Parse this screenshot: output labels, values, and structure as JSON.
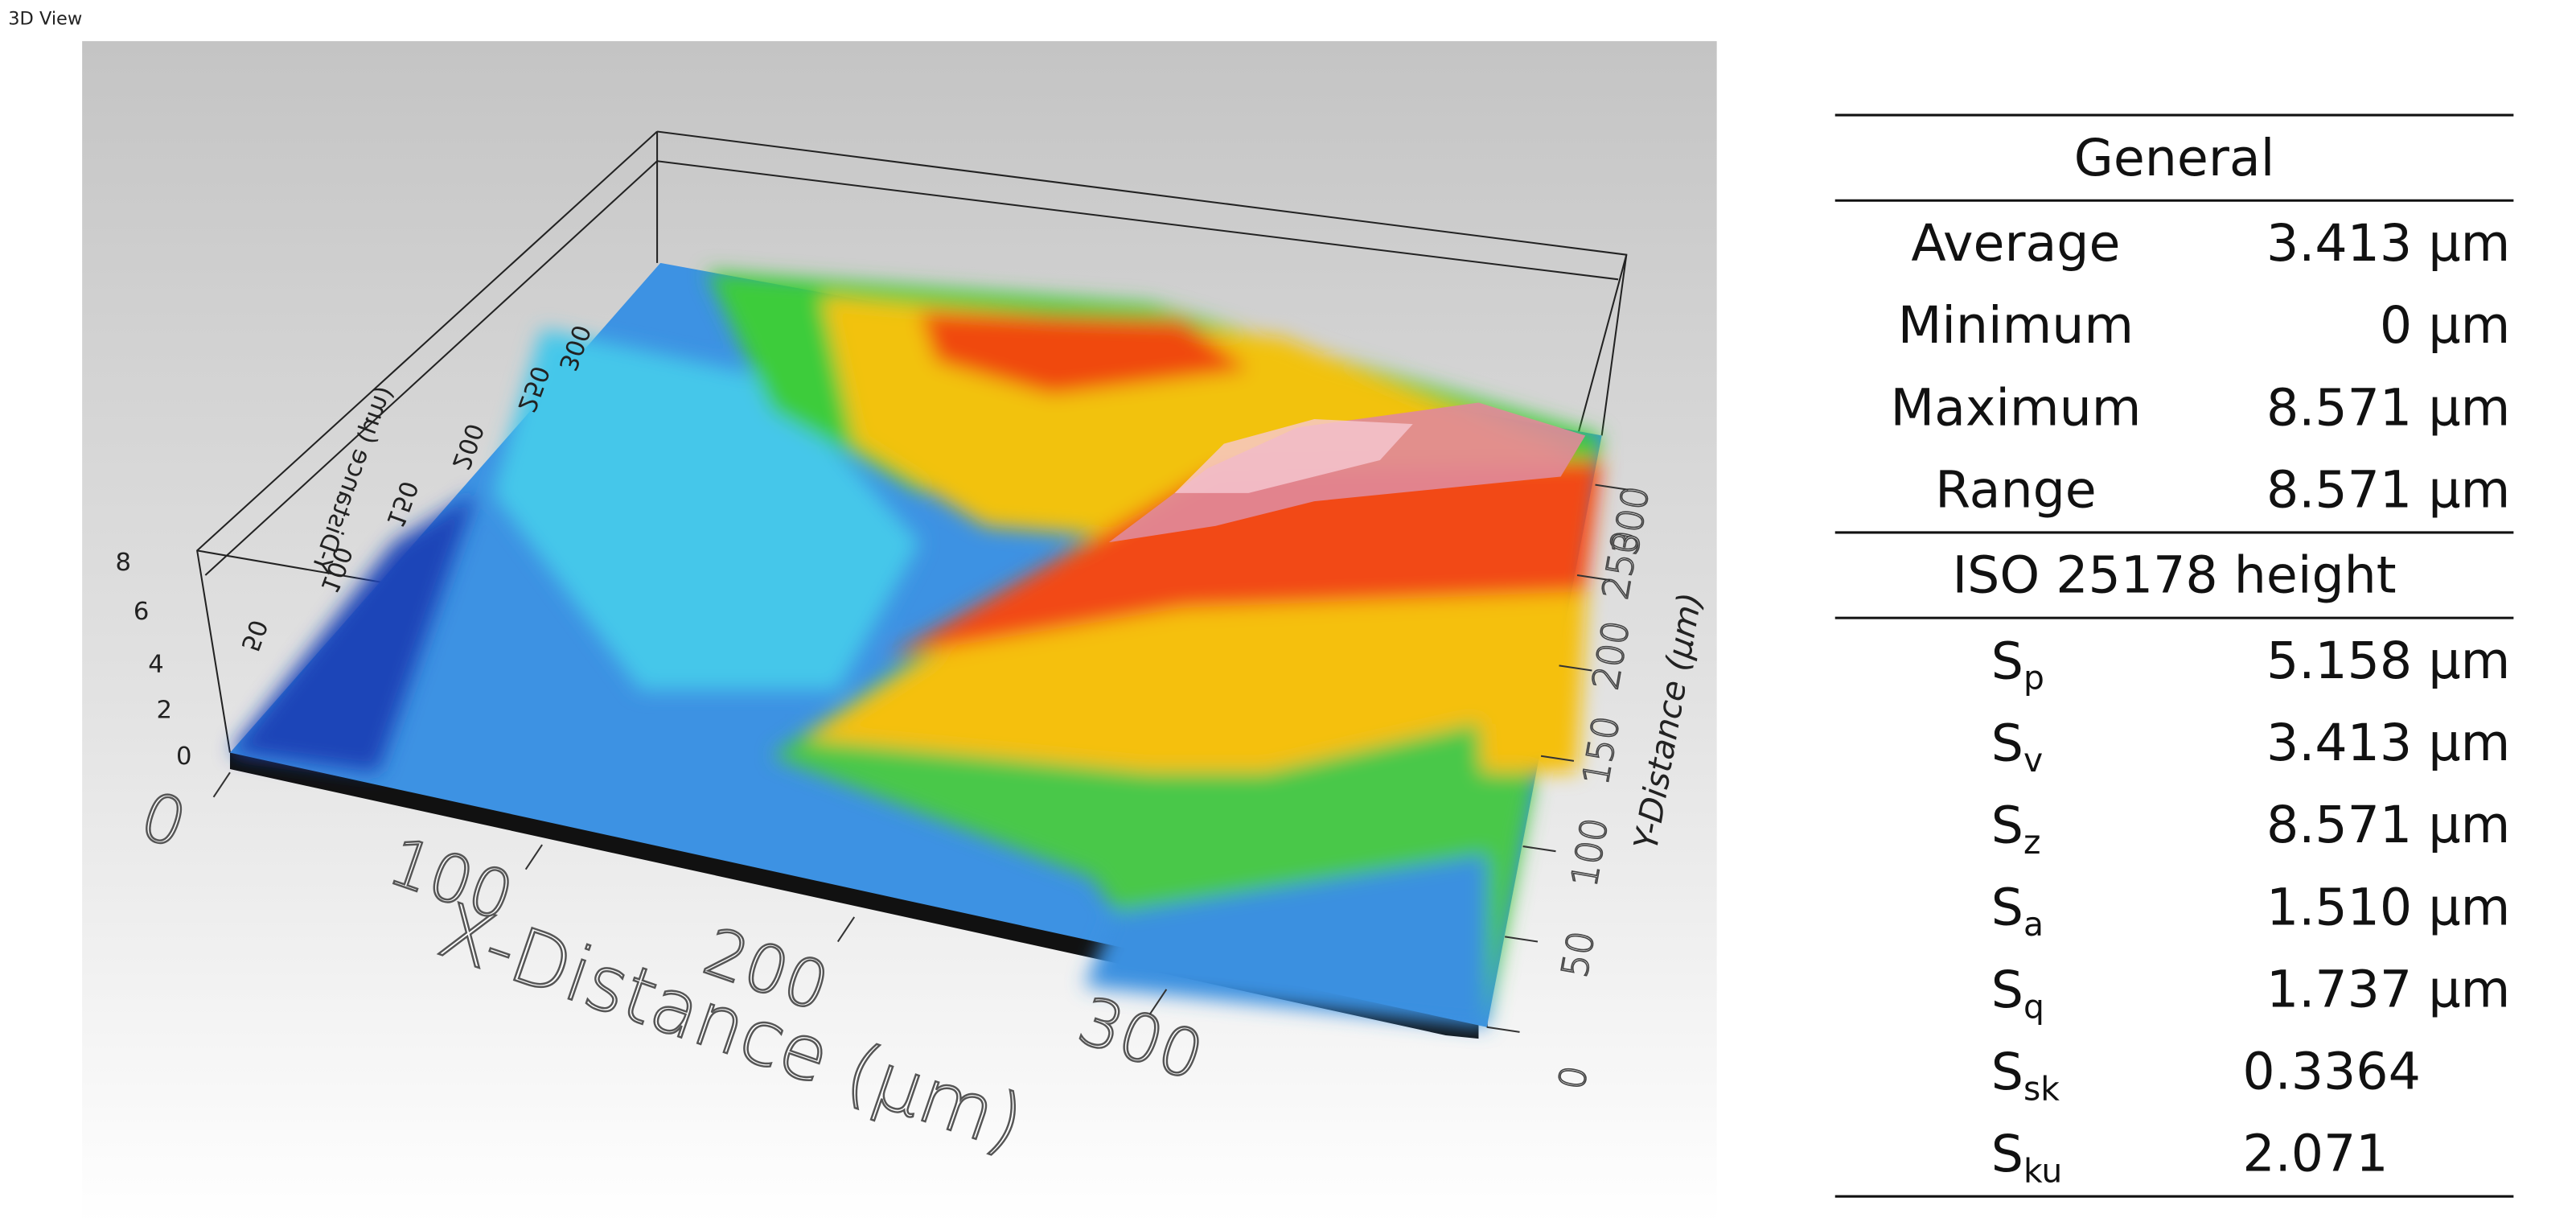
{
  "header": {
    "title": "3D View"
  },
  "view3d": {
    "x_axis_title": "X-Distance (μm)",
    "y_axis_title": "Y-Distance (μm)",
    "back_axis_title": "Y-Distance (μm)",
    "x_ticks": [
      0,
      100,
      200,
      300
    ],
    "y_ticks": [
      0,
      50,
      100,
      150,
      200,
      250,
      300
    ],
    "z_ticks": [
      0,
      2,
      4,
      6,
      8
    ],
    "back_ticks": [
      50,
      100,
      150,
      200,
      250,
      300
    ]
  },
  "table": {
    "sections": [
      {
        "title": "General",
        "rows": [
          {
            "label": "Average",
            "value": "3.413 μm"
          },
          {
            "label": "Minimum",
            "value": "0 μm"
          },
          {
            "label": "Maximum",
            "value": "8.571 μm"
          },
          {
            "label": "Range",
            "value": "8.571 μm"
          }
        ]
      },
      {
        "title": "ISO 25178 height",
        "rows": [
          {
            "symbol": "S",
            "subscript": "p",
            "value": "5.158 μm"
          },
          {
            "symbol": "S",
            "subscript": "v",
            "value": "3.413 μm"
          },
          {
            "symbol": "S",
            "subscript": "z",
            "value": "8.571 μm"
          },
          {
            "symbol": "S",
            "subscript": "a",
            "value": "1.510 μm"
          },
          {
            "symbol": "S",
            "subscript": "q",
            "value": "1.737 μm"
          },
          {
            "symbol": "S",
            "subscript": "sk",
            "value": "0.3364"
          },
          {
            "symbol": "S",
            "subscript": "ku",
            "value": "2.071"
          }
        ]
      }
    ]
  }
}
